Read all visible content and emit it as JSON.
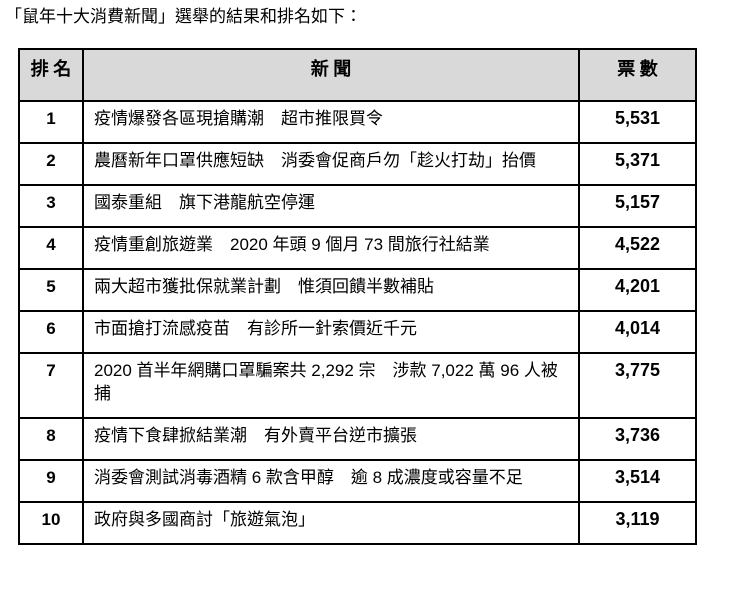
{
  "page": {
    "title": "「鼠年十大消費新聞」選舉的結果和排名如下："
  },
  "table": {
    "header_bg": "#d9d9d9",
    "border_color": "#000000",
    "headers": {
      "rank": "排 名",
      "news": "新 聞",
      "votes": "票 數"
    },
    "rows": [
      {
        "rank": "1",
        "news": "疫情爆發各區現搶購潮　超市推限買令",
        "votes": "5,531"
      },
      {
        "rank": "2",
        "news": "農曆新年口罩供應短缺　消委會促商戶勿「趁火打劫」抬價",
        "votes": "5,371"
      },
      {
        "rank": "3",
        "news": "國泰重組　旗下港龍航空停運",
        "votes": "5,157"
      },
      {
        "rank": "4",
        "news": "疫情重創旅遊業　2020 年頭 9 個月 73 間旅行社結業",
        "votes": "4,522"
      },
      {
        "rank": "5",
        "news": "兩大超市獲批保就業計劃　惟須回饋半數補貼",
        "votes": "4,201"
      },
      {
        "rank": "6",
        "news": "市面搶打流感疫苗　有診所一針索價近千元",
        "votes": "4,014"
      },
      {
        "rank": "7",
        "news": "2020 首半年網購口罩騙案共 2,292 宗　涉款 7,022 萬 96 人被捕",
        "votes": "3,775"
      },
      {
        "rank": "8",
        "news": "疫情下食肆掀結業潮　有外賣平台逆市擴張",
        "votes": "3,736"
      },
      {
        "rank": "9",
        "news": "消委會測試消毒酒精 6 款含甲醇　逾 8 成濃度或容量不足",
        "votes": "3,514"
      },
      {
        "rank": "10",
        "news": "政府與多國商討「旅遊氣泡」",
        "votes": "3,119"
      }
    ]
  }
}
